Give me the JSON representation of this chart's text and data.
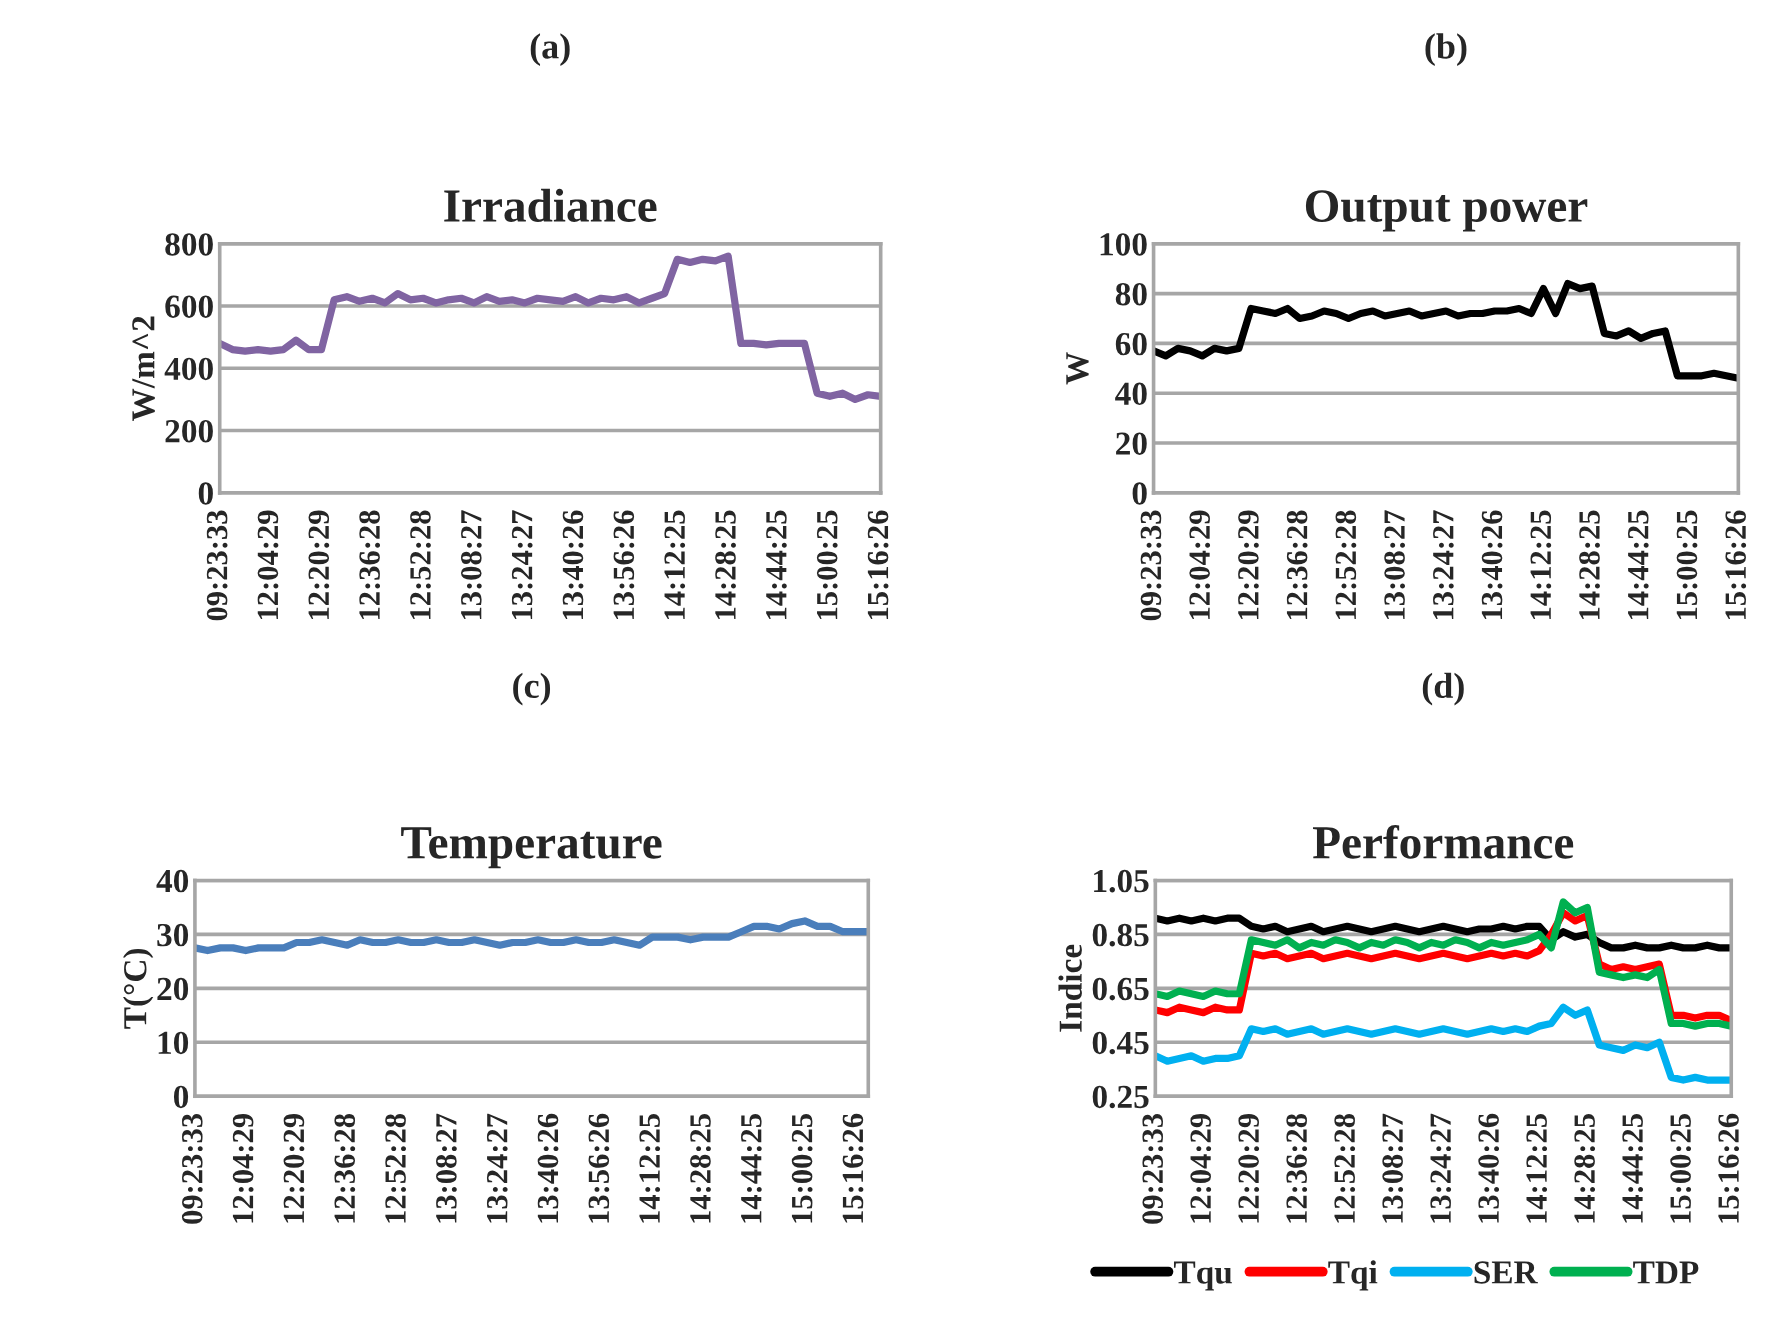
{
  "chart_data": [
    {
      "type": "line",
      "title": "(a)",
      "subtitle": "Irradiance",
      "ylabel": "W/m^2",
      "ylim": [
        0,
        800
      ],
      "yticks": [
        0,
        200,
        400,
        600,
        800
      ],
      "grid": "y",
      "line_style": "solid",
      "categories": [
        "09:23:33",
        null,
        null,
        null,
        "12:04:29",
        null,
        null,
        null,
        "12:20:29",
        null,
        null,
        null,
        "12:36:28",
        null,
        null,
        null,
        "12:52:28",
        null,
        null,
        null,
        "13:08:27",
        null,
        null,
        null,
        "13:24:27",
        null,
        null,
        null,
        "13:40:26",
        null,
        null,
        null,
        "13:56:26",
        null,
        null,
        null,
        "14:12:25",
        null,
        null,
        null,
        "14:28:25",
        null,
        null,
        null,
        "14:44:25",
        null,
        null,
        null,
        "15:00:25",
        null,
        null,
        null,
        "15:16:26"
      ],
      "series": [
        {
          "color": "#8064a2",
          "values": [
            480,
            460,
            455,
            460,
            455,
            460,
            490,
            460,
            460,
            620,
            630,
            615,
            625,
            610,
            640,
            620,
            625,
            610,
            620,
            625,
            610,
            630,
            615,
            620,
            610,
            625,
            620,
            615,
            630,
            610,
            625,
            620,
            630,
            610,
            625,
            640,
            750,
            740,
            750,
            745,
            760,
            480,
            480,
            475,
            480,
            480,
            480,
            320,
            310,
            320,
            300,
            315,
            310
          ]
        }
      ]
    },
    {
      "type": "line",
      "title": "(b)",
      "subtitle": "Output power",
      "ylabel": "W",
      "ylim": [
        0,
        100
      ],
      "yticks": [
        0,
        20,
        40,
        60,
        80,
        100
      ],
      "grid": "y",
      "line_style": "solid",
      "categories": [
        "09:23:33",
        null,
        null,
        null,
        "12:04:29",
        null,
        null,
        null,
        "12:20:29",
        null,
        null,
        null,
        "12:36:28",
        null,
        null,
        null,
        "12:52:28",
        null,
        null,
        null,
        "13:08:27",
        null,
        null,
        null,
        "13:24:27",
        null,
        null,
        null,
        "13:40:26",
        null,
        null,
        null,
        "14:12:25",
        null,
        null,
        null,
        "14:28:25",
        null,
        null,
        null,
        "14:44:25",
        null,
        null,
        null,
        "15:00:25",
        null,
        null,
        null,
        "15:16:26"
      ],
      "series": [
        {
          "color": "#000000",
          "values": [
            57,
            55,
            58,
            57,
            55,
            58,
            57,
            58,
            74,
            73,
            72,
            74,
            70,
            71,
            73,
            72,
            70,
            72,
            73,
            71,
            72,
            73,
            71,
            72,
            73,
            71,
            72,
            72,
            73,
            73,
            74,
            72,
            82,
            72,
            84,
            82,
            83,
            64,
            63,
            65,
            62,
            64,
            65,
            47,
            47,
            47,
            48,
            47,
            46
          ]
        }
      ]
    },
    {
      "type": "line",
      "title": "(c)",
      "subtitle": "Temperature",
      "ylabel": "T(°C)",
      "ylim": [
        0,
        40
      ],
      "yticks": [
        0,
        10,
        20,
        30,
        40
      ],
      "grid": "y",
      "line_style": "solid",
      "categories": [
        "09:23:33",
        null,
        null,
        null,
        "12:04:29",
        null,
        null,
        null,
        "12:20:29",
        null,
        null,
        null,
        "12:36:28",
        null,
        null,
        null,
        "12:52:28",
        null,
        null,
        null,
        "13:08:27",
        null,
        null,
        null,
        "13:24:27",
        null,
        null,
        null,
        "13:40:26",
        null,
        null,
        null,
        "13:56:26",
        null,
        null,
        null,
        "14:12:25",
        null,
        null,
        null,
        "14:28:25",
        null,
        null,
        null,
        "14:44:25",
        null,
        null,
        null,
        "15:00:25",
        null,
        null,
        null,
        "15:16:26",
        null
      ],
      "series": [
        {
          "color": "#4a7ebb",
          "values": [
            27.5,
            27,
            27.5,
            27.5,
            27,
            27.5,
            27.5,
            27.5,
            28.5,
            28.5,
            29,
            28.5,
            28,
            29,
            28.5,
            28.5,
            29,
            28.5,
            28.5,
            29,
            28.5,
            28.5,
            29,
            28.5,
            28,
            28.5,
            28.5,
            29,
            28.5,
            28.5,
            29,
            28.5,
            28.5,
            29,
            28.5,
            28,
            29.5,
            29.5,
            29.5,
            29,
            29.5,
            29.5,
            29.5,
            30.5,
            31.5,
            31.5,
            31,
            32,
            32.5,
            31.5,
            31.5,
            30.5,
            30.5,
            30.5
          ]
        }
      ]
    },
    {
      "type": "line",
      "title": "(d)",
      "subtitle": "Performance",
      "ylabel": "Indice",
      "ylim": [
        0.25,
        1.05
      ],
      "yticks": [
        {
          "value": 0.25,
          "label": "0.25"
        },
        {
          "value": 0.45,
          "label": "0.45"
        },
        {
          "value": 0.65,
          "label": "0.65"
        },
        {
          "value": 0.85,
          "label": "0.85"
        },
        {
          "value": 1.05,
          "label": "1.05"
        }
      ],
      "grid": "y",
      "line_style": "solid",
      "legend": "bottom",
      "categories": [
        "09:23:33",
        null,
        null,
        null,
        "12:04:29",
        null,
        null,
        null,
        "12:20:29",
        null,
        null,
        null,
        "12:36:28",
        null,
        null,
        null,
        "12:52:28",
        null,
        null,
        null,
        "13:08:27",
        null,
        null,
        null,
        "13:24:27",
        null,
        null,
        null,
        "13:40:26",
        null,
        null,
        null,
        "14:12:25",
        null,
        null,
        null,
        "14:28:25",
        null,
        null,
        null,
        "14:44:25",
        null,
        null,
        null,
        "15:00:25",
        null,
        null,
        null,
        "15:16:26"
      ],
      "series": [
        {
          "name": "Tqu",
          "color": "#000000",
          "values": [
            0.91,
            0.9,
            0.91,
            0.9,
            0.91,
            0.9,
            0.91,
            0.91,
            0.88,
            0.87,
            0.88,
            0.86,
            0.87,
            0.88,
            0.86,
            0.87,
            0.88,
            0.87,
            0.86,
            0.87,
            0.88,
            0.87,
            0.86,
            0.87,
            0.88,
            0.87,
            0.86,
            0.87,
            0.87,
            0.88,
            0.87,
            0.88,
            0.88,
            0.83,
            0.86,
            0.84,
            0.85,
            0.82,
            0.8,
            0.8,
            0.81,
            0.8,
            0.8,
            0.81,
            0.8,
            0.8,
            0.81,
            0.8,
            0.8
          ]
        },
        {
          "name": "Tqi",
          "color": "#ff0000",
          "values": [
            0.57,
            0.56,
            0.58,
            0.57,
            0.56,
            0.58,
            0.57,
            0.57,
            0.78,
            0.77,
            0.78,
            0.76,
            0.77,
            0.78,
            0.76,
            0.77,
            0.78,
            0.77,
            0.76,
            0.77,
            0.78,
            0.77,
            0.76,
            0.77,
            0.78,
            0.77,
            0.76,
            0.77,
            0.78,
            0.77,
            0.78,
            0.77,
            0.79,
            0.85,
            0.93,
            0.9,
            0.92,
            0.74,
            0.72,
            0.73,
            0.72,
            0.73,
            0.74,
            0.55,
            0.55,
            0.54,
            0.55,
            0.55,
            0.53
          ]
        },
        {
          "name": "SER",
          "color": "#00b0f0",
          "values": [
            0.4,
            0.38,
            0.39,
            0.4,
            0.38,
            0.39,
            0.39,
            0.4,
            0.5,
            0.49,
            0.5,
            0.48,
            0.49,
            0.5,
            0.48,
            0.49,
            0.5,
            0.49,
            0.48,
            0.49,
            0.5,
            0.49,
            0.48,
            0.49,
            0.5,
            0.49,
            0.48,
            0.49,
            0.5,
            0.49,
            0.5,
            0.49,
            0.51,
            0.52,
            0.58,
            0.55,
            0.57,
            0.44,
            0.43,
            0.42,
            0.44,
            0.43,
            0.45,
            0.32,
            0.31,
            0.32,
            0.31,
            0.31,
            0.31
          ]
        },
        {
          "name": "TDP",
          "color": "#00b050",
          "values": [
            0.63,
            0.62,
            0.64,
            0.63,
            0.62,
            0.64,
            0.63,
            0.63,
            0.83,
            0.82,
            0.81,
            0.83,
            0.8,
            0.82,
            0.81,
            0.83,
            0.82,
            0.8,
            0.82,
            0.81,
            0.83,
            0.82,
            0.8,
            0.82,
            0.81,
            0.83,
            0.82,
            0.8,
            0.82,
            0.81,
            0.82,
            0.83,
            0.85,
            0.8,
            0.97,
            0.93,
            0.95,
            0.71,
            0.7,
            0.69,
            0.7,
            0.69,
            0.72,
            0.52,
            0.52,
            0.51,
            0.52,
            0.52,
            0.51
          ]
        }
      ]
    }
  ]
}
